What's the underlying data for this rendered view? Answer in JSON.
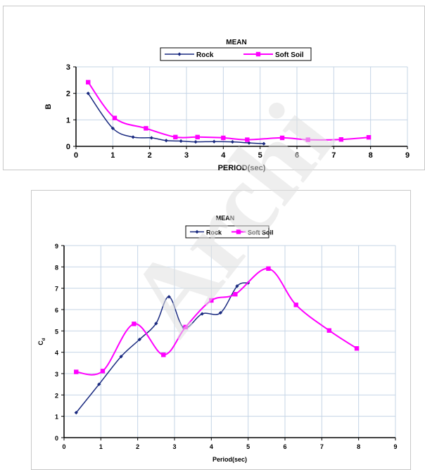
{
  "watermark": "Archi",
  "colors": {
    "rock": "#1a2a80",
    "soft_soil": "#ff00ff",
    "grid": "#c4d4e6",
    "watermark": "#e0e0e0"
  },
  "chart_data": [
    {
      "type": "line",
      "title": "MEAN",
      "xlabel": "PERIOD(sec)",
      "ylabel": "B",
      "xlim": [
        0,
        9
      ],
      "ylim": [
        0,
        3
      ],
      "xticks": [
        "0",
        "1",
        "2",
        "3",
        "4",
        "5",
        "6",
        "7",
        "8",
        "9"
      ],
      "yticks": [
        "0",
        "1",
        "2",
        "3"
      ],
      "grid": true,
      "legend": "top-center",
      "series": [
        {
          "name": "Rock",
          "marker": "diamond",
          "x": [
            0.33,
            1.0,
            1.55,
            2.05,
            2.45,
            2.85,
            3.25,
            3.75,
            4.25,
            4.7,
            5.1
          ],
          "y": [
            2.0,
            0.68,
            0.35,
            0.32,
            0.22,
            0.2,
            0.17,
            0.18,
            0.17,
            0.13,
            0.1
          ]
        },
        {
          "name": "Soft Soil",
          "marker": "square",
          "x": [
            0.33,
            1.05,
            1.9,
            2.7,
            3.3,
            4.0,
            4.65,
            5.6,
            6.3,
            7.2,
            7.95
          ],
          "y": [
            2.42,
            1.07,
            0.68,
            0.35,
            0.35,
            0.32,
            0.25,
            0.32,
            0.25,
            0.26,
            0.34
          ]
        }
      ]
    },
    {
      "type": "line",
      "title": "MEAN",
      "xlabel": "Period(sec)",
      "ylabel": "C",
      "ylabel_sub": "d",
      "xlim": [
        0,
        9
      ],
      "ylim": [
        0,
        9
      ],
      "xticks": [
        "0",
        "1",
        "2",
        "3",
        "4",
        "5",
        "6",
        "7",
        "8",
        "9"
      ],
      "yticks": [
        "0",
        "1",
        "2",
        "3",
        "4",
        "5",
        "6",
        "7",
        "8",
        "9"
      ],
      "grid": true,
      "legend": "top-center",
      "series": [
        {
          "name": "Rock",
          "marker": "diamond",
          "x": [
            0.33,
            0.95,
            1.55,
            2.05,
            2.5,
            2.85,
            3.25,
            3.75,
            4.25,
            4.7,
            5.0
          ],
          "y": [
            1.17,
            2.5,
            3.8,
            4.6,
            5.35,
            6.6,
            5.15,
            5.8,
            5.85,
            7.1,
            7.25
          ]
        },
        {
          "name": "Soft Soil",
          "marker": "square",
          "x": [
            0.33,
            1.05,
            1.9,
            2.7,
            3.3,
            4.0,
            4.65,
            5.55,
            6.3,
            7.2,
            7.95
          ],
          "y": [
            3.08,
            3.12,
            5.33,
            3.88,
            5.18,
            6.43,
            6.72,
            7.92,
            6.22,
            5.02,
            4.18
          ]
        }
      ]
    }
  ]
}
